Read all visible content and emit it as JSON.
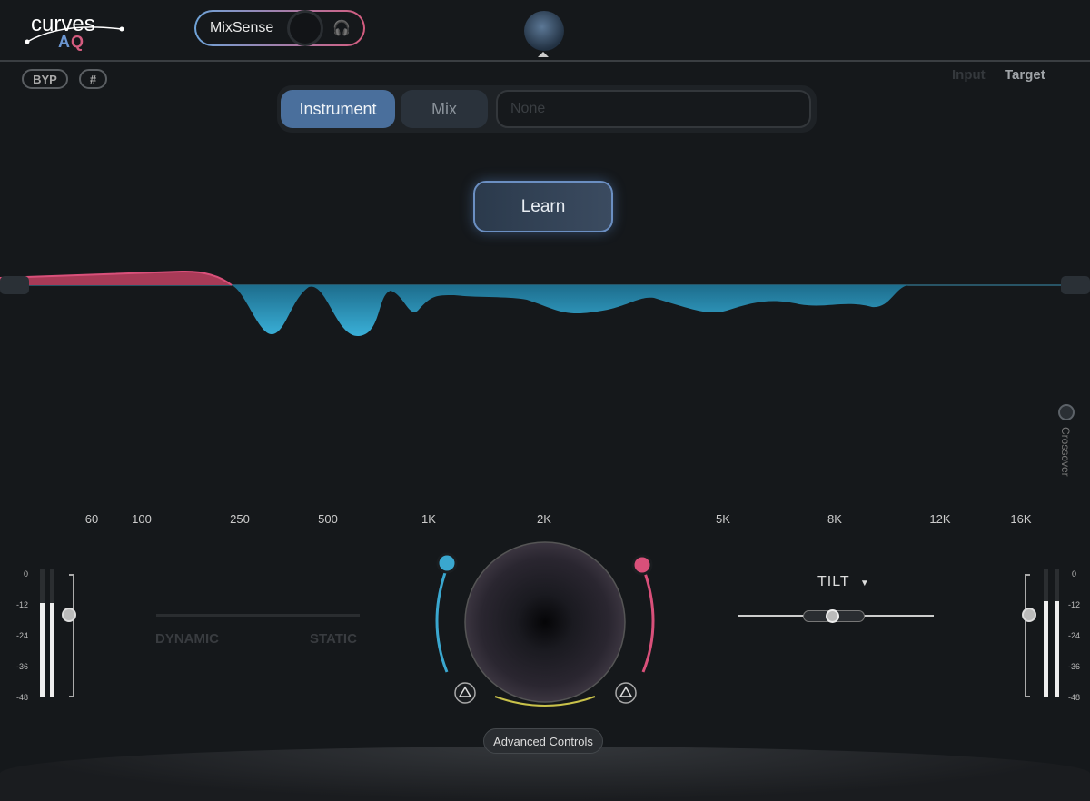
{
  "header": {
    "logo_text": "Curves AQ",
    "mixsense_label": "MixSense",
    "headphones_icon": "headphones-icon",
    "byp_label": "BYP",
    "grid_icon": "hash-grid-icon"
  },
  "view_toggle": {
    "input_label": "Input",
    "target_label": "Target",
    "active": "Target"
  },
  "source_tabs": {
    "instrument_label": "Instrument",
    "mix_label": "Mix",
    "selected": "Instrument",
    "profile_placeholder": "None"
  },
  "learn_label": "Learn",
  "crossover_label": "Crossover",
  "frequency_labels": [
    "60",
    "100",
    "250",
    "500",
    "1K",
    "2K",
    "5K",
    "8K",
    "12K",
    "16K"
  ],
  "meter_scale": [
    "0",
    "-",
    "-12",
    "-",
    "-24",
    "-",
    "-36",
    "-",
    "-48"
  ],
  "dynamic_static": {
    "dynamic_label": "DYNAMIC",
    "static_label": "STATIC"
  },
  "tilt": {
    "label": "TILT"
  },
  "advanced_controls_label": "Advanced Controls",
  "colors": {
    "accent_blue": "#3aa7cf",
    "accent_pink": "#d9507a",
    "background": "#15181b"
  }
}
